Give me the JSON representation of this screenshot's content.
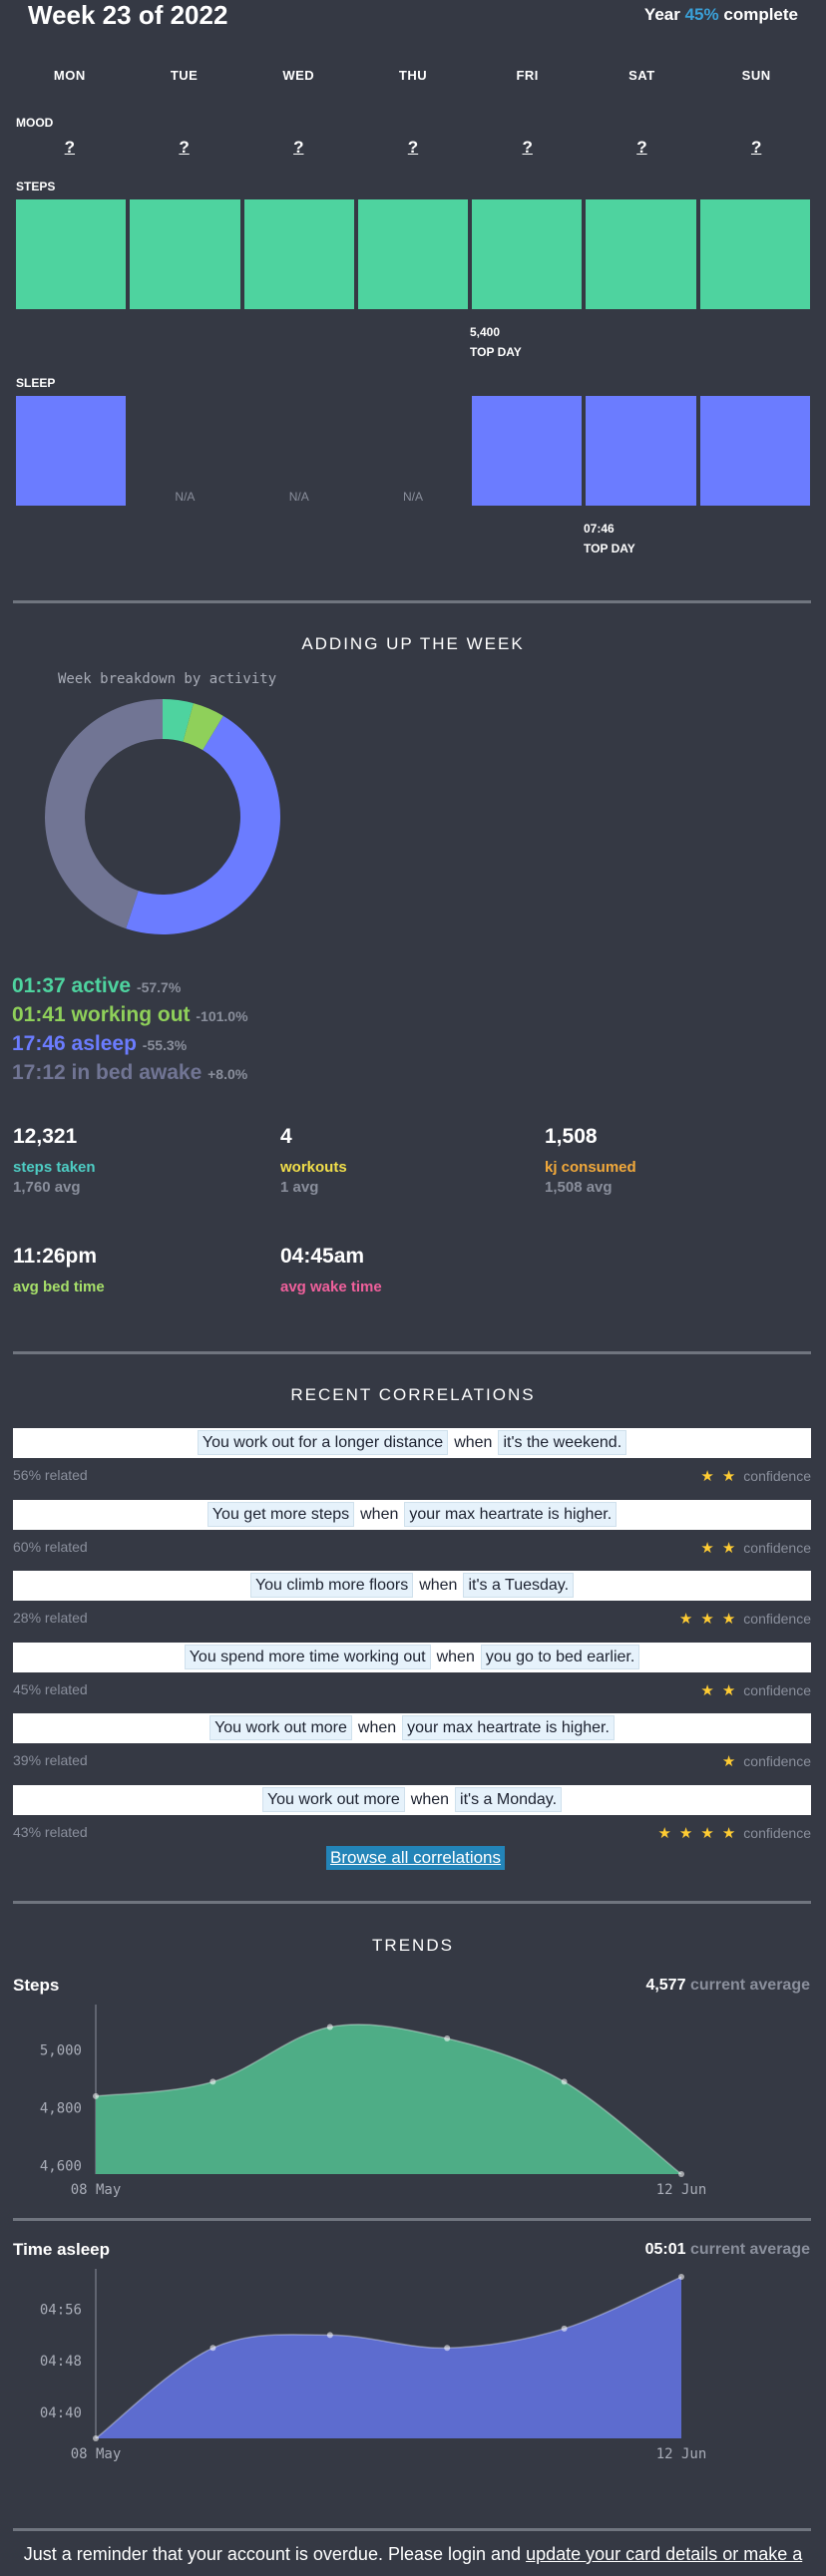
{
  "header": {
    "title": "Week 23 of 2022",
    "year_prefix": "Year",
    "year_percent": "45%",
    "year_suffix": "complete"
  },
  "days": [
    "MON",
    "TUE",
    "WED",
    "THU",
    "FRI",
    "SAT",
    "SUN"
  ],
  "mood": {
    "label": "MOOD",
    "values": [
      "?",
      "?",
      "?",
      "?",
      "?",
      "?",
      "?"
    ]
  },
  "steps": {
    "label": "STEPS",
    "top_value": "5,400",
    "top_label": "TOP DAY"
  },
  "sleep": {
    "label": "SLEEP",
    "na": [
      "N/A",
      "N/A",
      "N/A"
    ],
    "top_value": "07:46",
    "top_label": "TOP DAY"
  },
  "adding_up": {
    "heading": "ADDING UP THE WEEK",
    "donut_caption": "Week breakdown by activity",
    "activities": [
      {
        "value": "01:37 active",
        "delta": "-57.7%",
        "color": "#4ed39f"
      },
      {
        "value": "01:41 working out",
        "delta": "-101.0%",
        "color": "#8fd05a"
      },
      {
        "value": "17:46 asleep",
        "delta": "-55.3%",
        "color": "#6b7cff"
      },
      {
        "value": "17:12 in bed awake",
        "delta": "+8.0%",
        "color": "#717594"
      }
    ],
    "kpis": [
      {
        "value": "12,321",
        "label": "steps taken",
        "avg": "1,760 avg",
        "color": "#4ecdc4"
      },
      {
        "value": "4",
        "label": "workouts",
        "avg": "1 avg",
        "color": "#f2df4a"
      },
      {
        "value": "1,508",
        "label": "kj consumed",
        "avg": "1,508 avg",
        "color": "#f2a93b"
      },
      {
        "value": "11:26pm",
        "label": "avg bed time",
        "avg": "",
        "color": "#a7e06a"
      },
      {
        "value": "04:45am",
        "label": "avg wake time",
        "avg": "",
        "color": "#f0609c"
      }
    ]
  },
  "correlations": {
    "heading": "RECENT CORRELATIONS",
    "confidence_label": "confidence",
    "when_label": "when",
    "items": [
      {
        "a": "You work out for a longer distance",
        "b": "it's the weekend.",
        "related": "56% related"
      },
      {
        "a": "You get more steps",
        "b": "your max heartrate is higher.",
        "related": "60% related"
      },
      {
        "a": "You climb more floors",
        "b": "it's a Tuesday.",
        "related": "28% related"
      },
      {
        "a": "You spend more time working out",
        "b": "you go to bed earlier.",
        "related": "45% related"
      },
      {
        "a": "You work out more",
        "b": "your max heartrate is higher.",
        "related": "39% related"
      },
      {
        "a": "You work out more",
        "b": "it's a Monday.",
        "related": "43% related"
      }
    ],
    "stars": [
      2,
      2,
      3,
      2,
      1,
      4
    ],
    "browse_label": "Browse all correlations"
  },
  "trends": {
    "heading": "TRENDS",
    "current_average_label": "current average",
    "steps_title": "Steps",
    "steps_value": "4,577",
    "sleep_title": "Time asleep",
    "sleep_value": "05:01"
  },
  "footer": {
    "text": "Just a reminder that your account is overdue. Please login and",
    "link": "update your card details or make a"
  },
  "chart_data": [
    {
      "type": "pie",
      "title": "Week breakdown by activity",
      "categories": [
        "active",
        "working out",
        "asleep",
        "in bed awake"
      ],
      "values": [
        97,
        101,
        1066,
        1032
      ],
      "colors": [
        "#4ed39f",
        "#8fd05a",
        "#6b7cff",
        "#717594"
      ]
    },
    {
      "type": "area",
      "title": "Steps",
      "x": [
        "08 May",
        "15 May",
        "22 May",
        "29 May",
        "05 Jun",
        "12 Jun"
      ],
      "xticks": [
        "08 May",
        "12 Jun"
      ],
      "values": [
        4840,
        4890,
        5080,
        5040,
        4890,
        4570
      ],
      "yticks": [
        "4,600",
        "4,800",
        "5,000"
      ],
      "ytick_values": [
        4600,
        4800,
        5000
      ],
      "ylim": [
        4570,
        5130
      ],
      "color": "#4ead86"
    },
    {
      "type": "area",
      "title": "Time asleep",
      "x": [
        "08 May",
        "15 May",
        "22 May",
        "29 May",
        "05 Jun",
        "12 Jun"
      ],
      "xticks": [
        "08 May",
        "12 Jun"
      ],
      "values": [
        276,
        290,
        292,
        290,
        293,
        301
      ],
      "yticks": [
        "04:40",
        "04:48",
        "04:56"
      ],
      "ytick_values": [
        280,
        288,
        296
      ],
      "ylim": [
        276,
        301
      ],
      "color": "#5d6ccf"
    }
  ]
}
